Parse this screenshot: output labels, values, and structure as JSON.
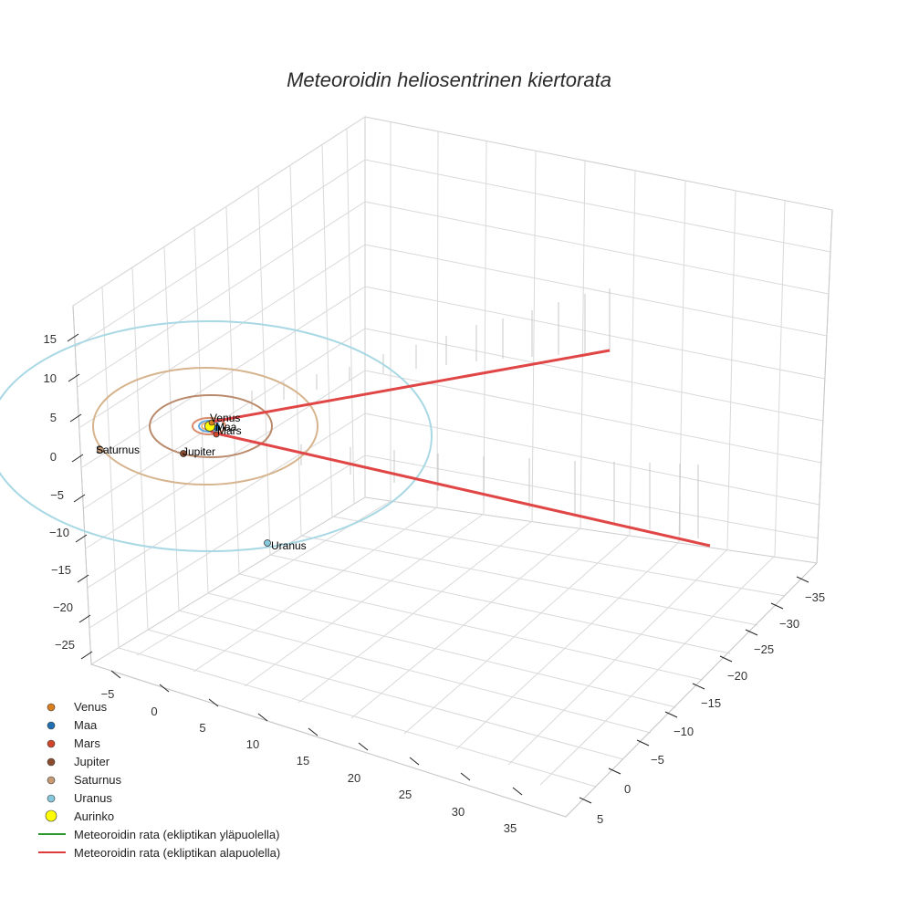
{
  "chart_data": {
    "type": "scatter3d",
    "title": "Meteoroidin heliosentrinen kiertorata",
    "axes": {
      "x": {
        "ticks": [
          -5,
          0,
          5,
          10,
          15,
          20,
          25,
          30,
          35
        ]
      },
      "y": {
        "ticks": [
          -35,
          -30,
          -25,
          -20,
          -15,
          -10,
          -5,
          0,
          5
        ]
      },
      "z": {
        "ticks": [
          -25,
          -20,
          -15,
          -10,
          -5,
          0,
          5,
          10,
          15
        ]
      }
    },
    "grid": true,
    "legend_position": "bottom-left",
    "bodies": [
      {
        "name": "Venus",
        "color": "#d97f1e",
        "orbit_radius": 0.72
      },
      {
        "name": "Maa",
        "color": "#1f6fb4",
        "orbit_radius": 1.0
      },
      {
        "name": "Mars",
        "color": "#d0462a",
        "orbit_radius": 1.52
      },
      {
        "name": "Jupiter",
        "color": "#8a4b2e",
        "orbit_radius": 5.2
      },
      {
        "name": "Saturnus",
        "color": "#c59a74",
        "orbit_radius": 9.5
      },
      {
        "name": "Uranus",
        "color": "#86c8dc",
        "orbit_radius": 19.2
      },
      {
        "name": "Aurinko",
        "color": "#ffff00",
        "orbit_radius": 0
      }
    ],
    "series": [
      {
        "name": "Meteoroidin rata (ekliptikan yläpuolella)",
        "color": "#2a9a2a"
      },
      {
        "name": "Meteoroidin rata (ekliptikan alapuolella)",
        "color": "#e03a3a"
      }
    ]
  }
}
